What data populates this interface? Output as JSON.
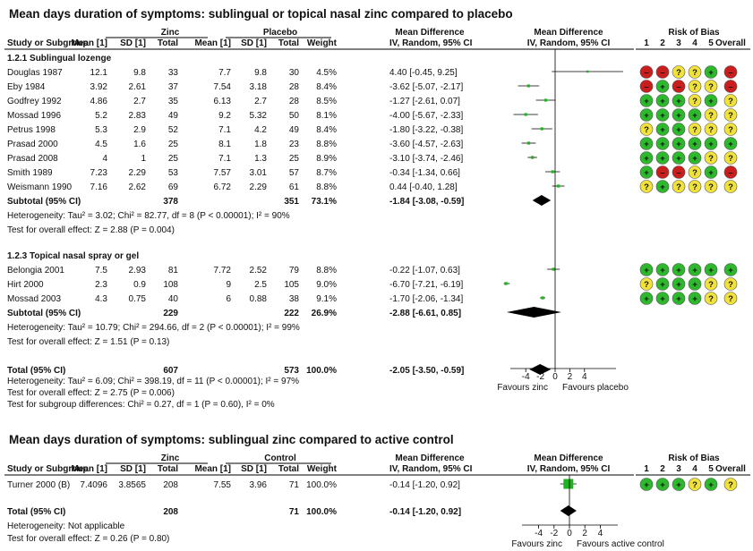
{
  "chart_data": [
    {
      "type": "forest",
      "title": "Mean days duration of symptoms: sublingual or topical nasal zinc compared to placebo",
      "group1": "Zinc",
      "group2": "Placebo",
      "columns": [
        "Study or Subgroup",
        "Mean [1]",
        "SD [1]",
        "Total",
        "Mean [1]",
        "SD [1]",
        "Total",
        "Weight",
        "IV, Random, 95% CI"
      ],
      "md_header": "Mean Difference",
      "plot_header": "IV, Random, 95% CI",
      "rob_header": "Risk of Bias",
      "rob_columns": [
        "1",
        "2",
        "3",
        "4",
        "5",
        "Overall"
      ],
      "xlim": [
        -7,
        10
      ],
      "xticks": [
        "-4",
        "-2",
        "0",
        "2",
        "4"
      ],
      "xticks_values": [
        -4,
        -2,
        0,
        2,
        4
      ],
      "favours_left": "Favours zinc",
      "favours_right": "Favours placebo",
      "subgroups": [
        {
          "title": "1.2.1 Sublingual lozenge",
          "studies": [
            {
              "name": "Douglas 1987",
              "m1": "12.1",
              "sd1": "9.8",
              "n1": "33",
              "m2": "7.7",
              "sd2": "9.8",
              "n2": "30",
              "weight": "4.5%",
              "ci": "4.40 [-0.45, 9.25]",
              "md": 4.4,
              "lo": -0.45,
              "hi": 9.25,
              "rob": [
                "r",
                "r",
                "y",
                "y",
                "g"
              ],
              "overall": "r"
            },
            {
              "name": "Eby 1984",
              "m1": "3.92",
              "sd1": "2.61",
              "n1": "37",
              "m2": "7.54",
              "sd2": "3.18",
              "n2": "28",
              "weight": "8.4%",
              "ci": "-3.62 [-5.07, -2.17]",
              "md": -3.62,
              "lo": -5.07,
              "hi": -2.17,
              "rob": [
                "r",
                "g",
                "r",
                "y",
                "y"
              ],
              "overall": "r"
            },
            {
              "name": "Godfrey 1992",
              "m1": "4.86",
              "sd1": "2.7",
              "n1": "35",
              "m2": "6.13",
              "sd2": "2.7",
              "n2": "28",
              "weight": "8.5%",
              "ci": "-1.27 [-2.61, 0.07]",
              "md": -1.27,
              "lo": -2.61,
              "hi": 0.07,
              "rob": [
                "g",
                "g",
                "g",
                "y",
                "g"
              ],
              "overall": "y"
            },
            {
              "name": "Mossad 1996",
              "m1": "5.2",
              "sd1": "2.83",
              "n1": "49",
              "m2": "9.2",
              "sd2": "5.32",
              "n2": "50",
              "weight": "8.1%",
              "ci": "-4.00 [-5.67, -2.33]",
              "md": -4.0,
              "lo": -5.67,
              "hi": -2.33,
              "rob": [
                "g",
                "g",
                "g",
                "g",
                "y"
              ],
              "overall": "y"
            },
            {
              "name": "Petrus 1998",
              "m1": "5.3",
              "sd1": "2.9",
              "n1": "52",
              "m2": "7.1",
              "sd2": "4.2",
              "n2": "49",
              "weight": "8.4%",
              "ci": "-1.80 [-3.22, -0.38]",
              "md": -1.8,
              "lo": -3.22,
              "hi": -0.38,
              "rob": [
                "y",
                "g",
                "g",
                "y",
                "y"
              ],
              "overall": "y"
            },
            {
              "name": "Prasad 2000",
              "m1": "4.5",
              "sd1": "1.6",
              "n1": "25",
              "m2": "8.1",
              "sd2": "1.8",
              "n2": "23",
              "weight": "8.8%",
              "ci": "-3.60 [-4.57, -2.63]",
              "md": -3.6,
              "lo": -4.57,
              "hi": -2.63,
              "rob": [
                "g",
                "g",
                "g",
                "g",
                "g"
              ],
              "overall": "g"
            },
            {
              "name": "Prasad 2008",
              "m1": "4",
              "sd1": "1",
              "n1": "25",
              "m2": "7.1",
              "sd2": "1.3",
              "n2": "25",
              "weight": "8.9%",
              "ci": "-3.10 [-3.74, -2.46]",
              "md": -3.1,
              "lo": -3.74,
              "hi": -2.46,
              "rob": [
                "g",
                "g",
                "g",
                "g",
                "y"
              ],
              "overall": "y"
            },
            {
              "name": "Smith 1989",
              "m1": "7.23",
              "sd1": "2.29",
              "n1": "53",
              "m2": "7.57",
              "sd2": "3.01",
              "n2": "57",
              "weight": "8.7%",
              "ci": "-0.34 [-1.34, 0.66]",
              "md": -0.34,
              "lo": -1.34,
              "hi": 0.66,
              "rob": [
                "g",
                "r",
                "r",
                "y",
                "g"
              ],
              "overall": "r"
            },
            {
              "name": "Weismann 1990",
              "m1": "7.16",
              "sd1": "2.62",
              "n1": "69",
              "m2": "6.72",
              "sd2": "2.29",
              "n2": "61",
              "weight": "8.8%",
              "ci": "0.44 [-0.40, 1.28]",
              "md": 0.44,
              "lo": -0.4,
              "hi": 1.28,
              "rob": [
                "y",
                "g",
                "y",
                "y",
                "y"
              ],
              "overall": "y"
            }
          ],
          "subtotal": {
            "label": "Subtotal (95% CI)",
            "n1": "378",
            "n2": "351",
            "weight": "73.1%",
            "ci": "-1.84 [-3.08, -0.59]",
            "md": -1.84,
            "lo": -3.08,
            "hi": -0.59
          },
          "heterogeneity": "Heterogeneity: Tau² = 3.02; Chi² = 82.77, df = 8 (P < 0.00001); I² = 90%",
          "overall_effect": "Test for overall effect: Z = 2.88 (P = 0.004)"
        },
        {
          "title": "1.2.3 Topical nasal spray or gel",
          "studies": [
            {
              "name": "Belongia 2001",
              "m1": "7.5",
              "sd1": "2.93",
              "n1": "81",
              "m2": "7.72",
              "sd2": "2.52",
              "n2": "79",
              "weight": "8.8%",
              "ci": "-0.22 [-1.07, 0.63]",
              "md": -0.22,
              "lo": -1.07,
              "hi": 0.63,
              "rob": [
                "g",
                "g",
                "g",
                "g",
                "g"
              ],
              "overall": "g"
            },
            {
              "name": "Hirt 2000",
              "m1": "2.3",
              "sd1": "0.9",
              "n1": "108",
              "m2": "9",
              "sd2": "2.5",
              "n2": "105",
              "weight": "9.0%",
              "ci": "-6.70 [-7.21, -6.19]",
              "md": -6.7,
              "lo": -7.21,
              "hi": -6.19,
              "rob": [
                "y",
                "g",
                "g",
                "g",
                "y"
              ],
              "overall": "y"
            },
            {
              "name": "Mossad 2003",
              "m1": "4.3",
              "sd1": "0.75",
              "n1": "40",
              "m2": "6",
              "sd2": "0.88",
              "n2": "38",
              "weight": "9.1%",
              "ci": "-1.70 [-2.06, -1.34]",
              "md": -1.7,
              "lo": -2.06,
              "hi": -1.34,
              "rob": [
                "g",
                "g",
                "g",
                "g",
                "y"
              ],
              "overall": "y"
            }
          ],
          "subtotal": {
            "label": "Subtotal (95% CI)",
            "n1": "229",
            "n2": "222",
            "weight": "26.9%",
            "ci": "-2.88 [-6.61, 0.85]",
            "md": -2.88,
            "lo": -6.61,
            "hi": 0.85
          },
          "heterogeneity": "Heterogeneity: Tau² = 10.79; Chi² = 294.66, df = 2 (P < 0.00001); I² = 99%",
          "overall_effect": "Test for overall effect: Z = 1.51 (P = 0.13)"
        }
      ],
      "total": {
        "label": "Total (95% CI)",
        "n1": "607",
        "n2": "573",
        "weight": "100.0%",
        "ci": "-2.05 [-3.50, -0.59]",
        "md": -2.05,
        "lo": -3.5,
        "hi": -0.59
      },
      "footer": [
        "Heterogeneity: Tau² = 6.09; Chi² = 398.19, df = 11 (P < 0.00001); I² = 97%",
        "Test for overall effect: Z = 2.75 (P = 0.006)",
        "Test for subgroup differences: Chi² = 0.27, df = 1 (P = 0.60), I² = 0%"
      ]
    },
    {
      "type": "forest",
      "title": "Mean days duration of symptoms: sublingual zinc compared to active control",
      "group1": "Zinc",
      "group2": "Control",
      "columns": [
        "Study or Subgroup",
        "Mean [1]",
        "SD [1]",
        "Total",
        "Mean [1]",
        "SD [1]",
        "Total",
        "Weight",
        "IV, Random, 95% CI"
      ],
      "md_header": "Mean Difference",
      "plot_header": "IV, Random, 95% CI",
      "rob_header": "Risk of Bias",
      "rob_columns": [
        "1",
        "2",
        "3",
        "4",
        "5",
        "Overall"
      ],
      "xlim": [
        -5,
        5
      ],
      "xticks": [
        "-4",
        "-2",
        "0",
        "2",
        "4"
      ],
      "xticks_values": [
        -4,
        -2,
        0,
        2,
        4
      ],
      "favours_left": "Favours zinc",
      "favours_right": "Favours active control",
      "studies": [
        {
          "name": "Turner 2000 (B)",
          "m1": "7.4096",
          "sd1": "3.8565",
          "n1": "208",
          "m2": "7.55",
          "sd2": "3.96",
          "n2": "71",
          "weight": "100.0%",
          "ci": "-0.14 [-1.20, 0.92]",
          "md": -0.14,
          "lo": -1.2,
          "hi": 0.92,
          "rob": [
            "g",
            "g",
            "g",
            "y",
            "g"
          ],
          "overall": "y"
        }
      ],
      "total": {
        "label": "Total (95% CI)",
        "n1": "208",
        "n2": "71",
        "weight": "100.0%",
        "ci": "-0.14 [-1.20, 0.92]",
        "md": -0.14,
        "lo": -1.2,
        "hi": 0.92
      },
      "footer": [
        "Heterogeneity: Not applicable",
        "Test for overall effect: Z = 0.26 (P = 0.80)"
      ]
    }
  ],
  "colors": {
    "low_risk": "#2db82d",
    "unclear_risk": "#f0e23a",
    "high_risk": "#c81e1e",
    "marker": "#1fb31f",
    "diamond": "#000000"
  }
}
